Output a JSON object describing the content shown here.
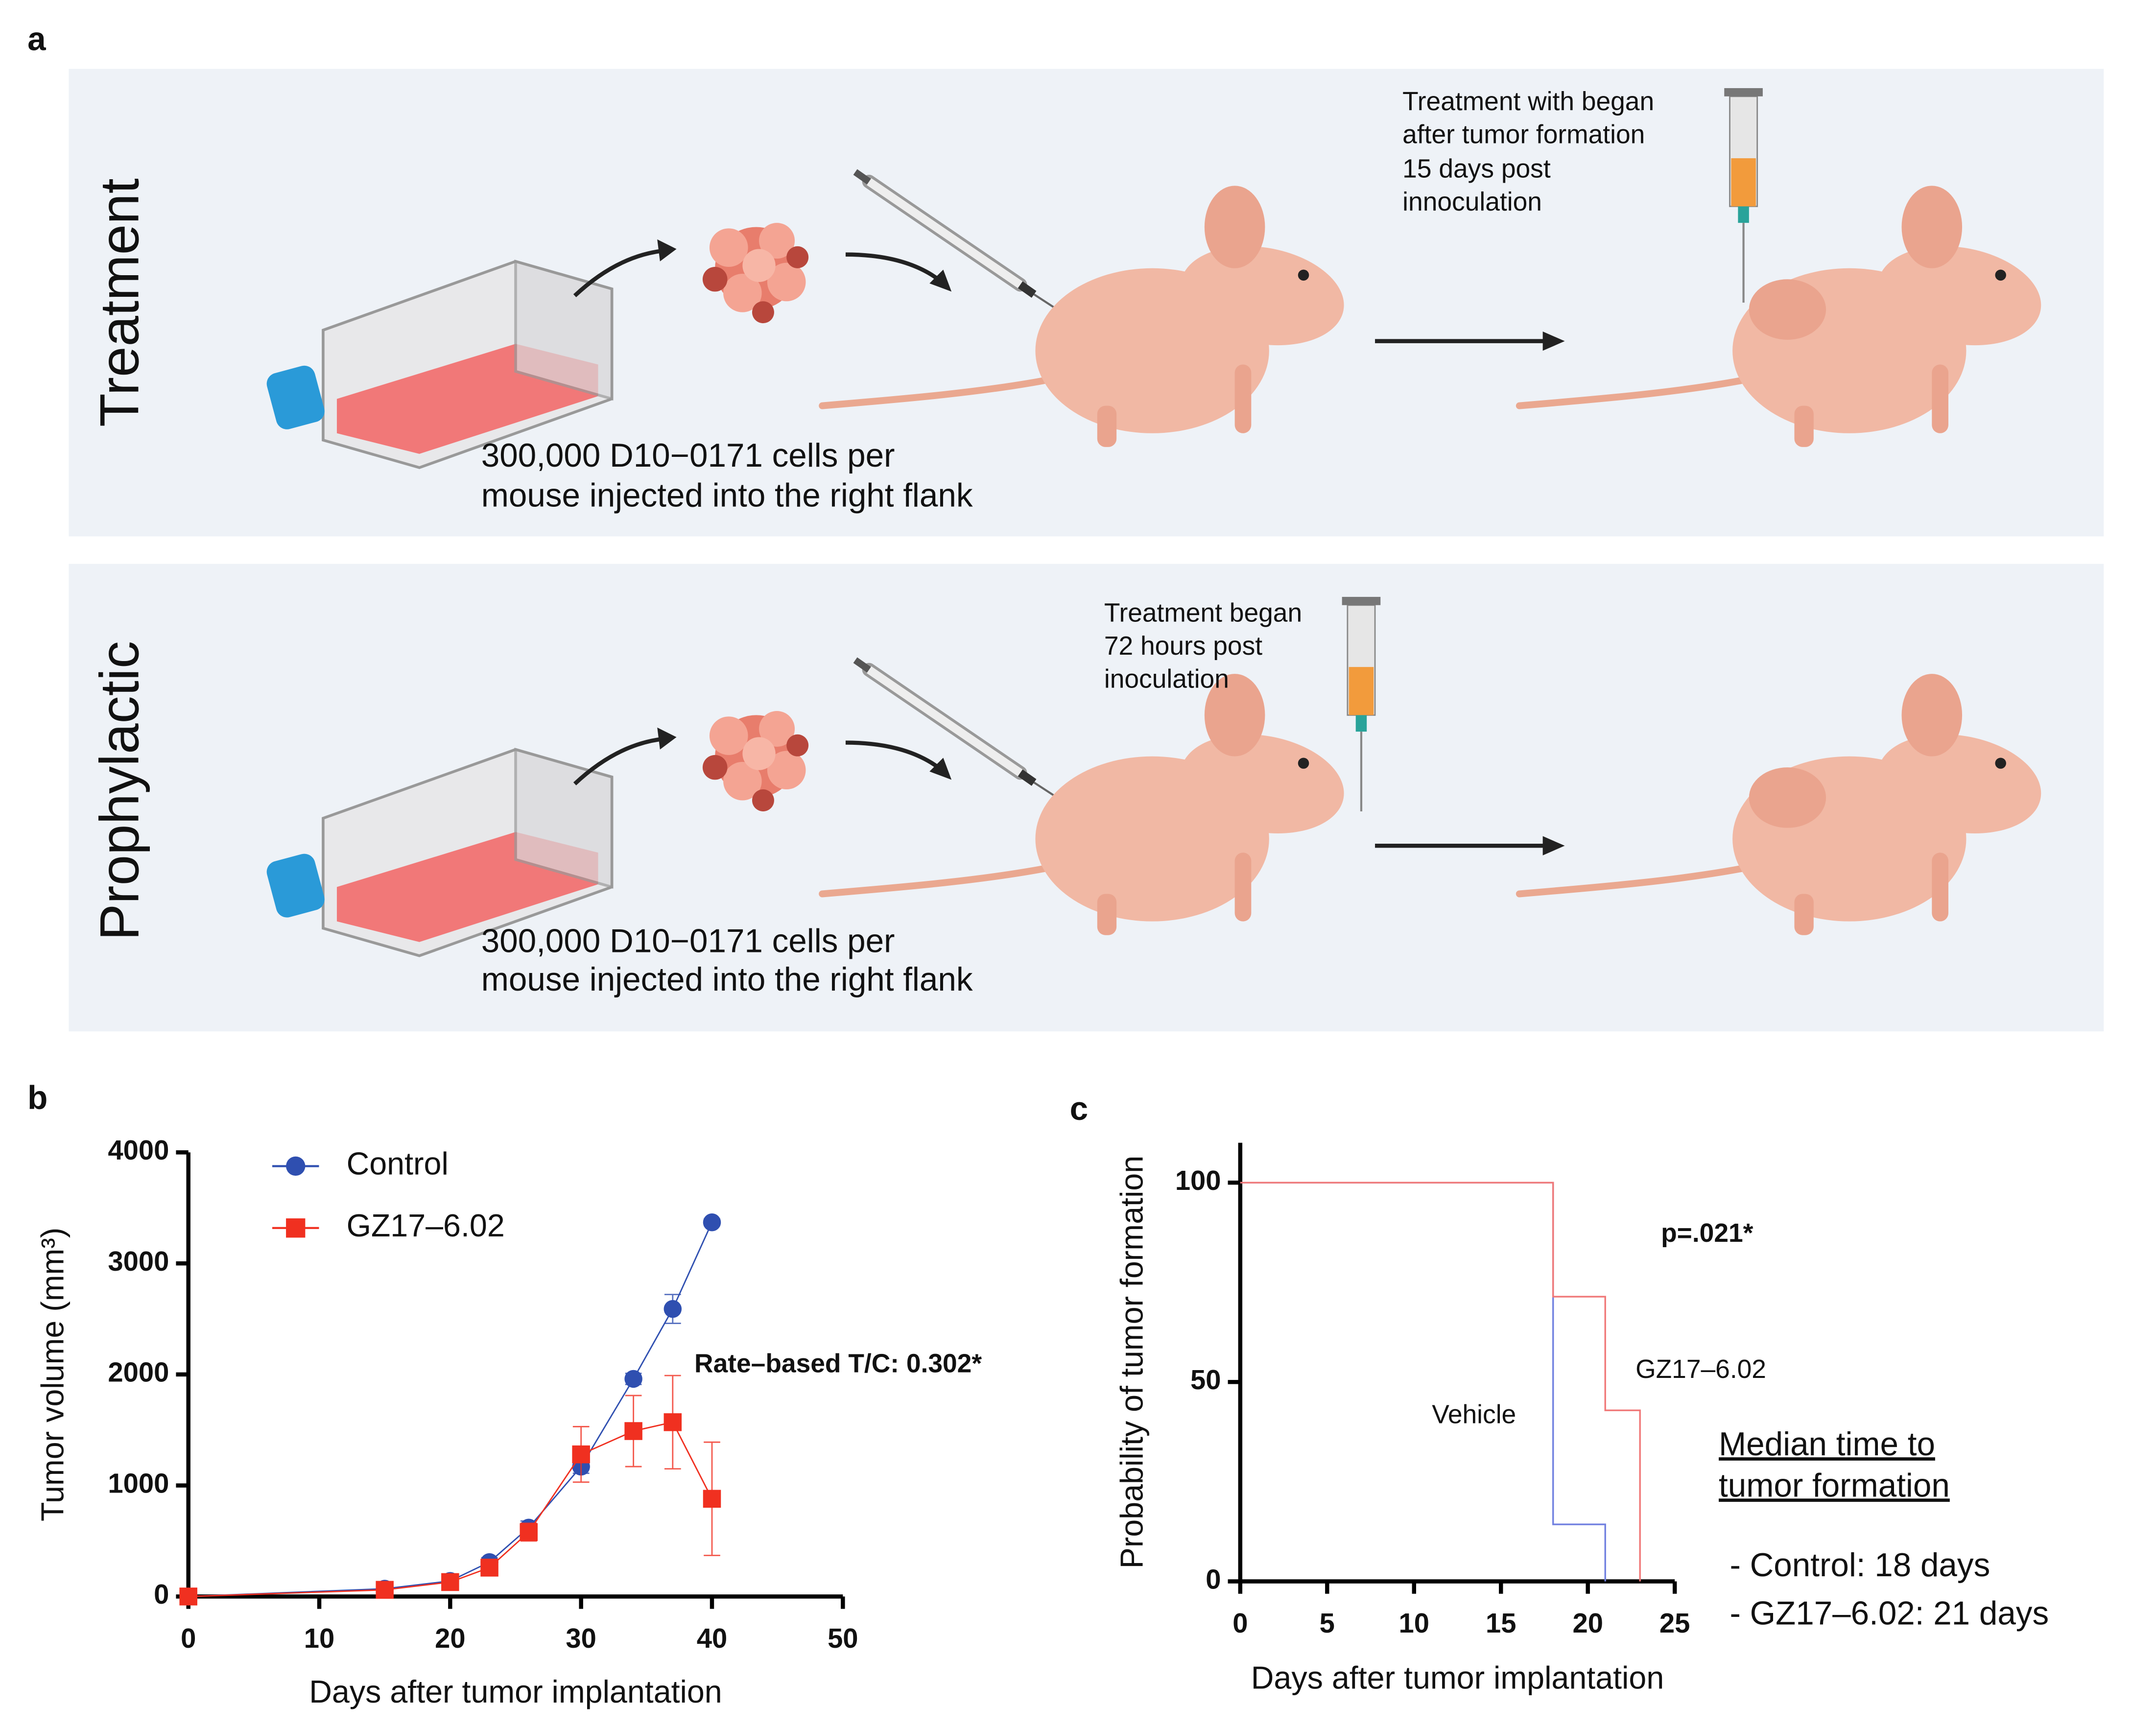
{
  "panel_labels": [
    "a",
    "b",
    "c"
  ],
  "diagram": {
    "rows": [
      {
        "label": "Treatment",
        "caption": [
          "300,000 D10−0171 cells per",
          "mouse injected into the right flank"
        ],
        "note": [
          "Treatment with began",
          "after tumor formation",
          "15 days post",
          "innoculation"
        ]
      },
      {
        "label": "Prophylactic",
        "caption": [
          "300,000 D10−0171 cells per",
          "mouse injected into the right flank"
        ],
        "note": [
          "Treatment began",
          "72 hours post",
          "inoculation"
        ]
      }
    ]
  },
  "chart_data": [
    {
      "type": "line",
      "xlabel": "Days after tumor implantation",
      "ylabel": "Tumor volume (mm³)",
      "annotation": "Rate–based T/C: 0.302*",
      "xlim": [
        0,
        50
      ],
      "xticks": [
        0,
        10,
        20,
        30,
        40,
        50
      ],
      "ylim": [
        0,
        4000
      ],
      "yticks": [
        0,
        1000,
        2000,
        3000,
        4000
      ],
      "legend": "upper left",
      "series": [
        {
          "name": "Control",
          "color": "#2f4fb0",
          "marker": "circle",
          "x": [
            0,
            15,
            20,
            23,
            26,
            30,
            34,
            37,
            40
          ],
          "values": [
            0,
            70,
            140,
            310,
            620,
            1170,
            1960,
            2590,
            3370
          ],
          "errors": [
            0,
            20,
            30,
            40,
            60,
            60,
            50,
            130,
            30
          ]
        },
        {
          "name": "GZ17–6.02",
          "color": "#f03020",
          "marker": "square",
          "x": [
            0,
            15,
            20,
            23,
            26,
            30,
            34,
            37,
            40
          ],
          "values": [
            0,
            60,
            130,
            260,
            580,
            1280,
            1490,
            1570,
            880
          ],
          "errors": [
            0,
            20,
            30,
            40,
            80,
            250,
            320,
            420,
            510
          ]
        }
      ]
    },
    {
      "type": "step",
      "xlabel": "Days after tumor implantation",
      "ylabel": "Probability of tumor formation",
      "annotation": "p=.021*",
      "xlim": [
        0,
        25
      ],
      "xticks": [
        0,
        5,
        10,
        15,
        20,
        25
      ],
      "ylim": [
        0,
        110
      ],
      "yticks": [
        0,
        50,
        100
      ],
      "series": [
        {
          "name": "Vehicle",
          "color": "#7080e0",
          "x": [
            0,
            18,
            18,
            21,
            21
          ],
          "values": [
            100,
            100,
            14.3,
            14.3,
            0
          ]
        },
        {
          "name": "GZ17–6.02",
          "color": "#f07878",
          "x": [
            0,
            18,
            18,
            21,
            21,
            23,
            23
          ],
          "values": [
            100,
            100,
            71.4,
            71.4,
            42.9,
            42.9,
            0
          ]
        }
      ],
      "side_note": {
        "heading": [
          "Median time to",
          "tumor formation"
        ],
        "items": [
          "- Control: 18 days",
          "- GZ17–6.02: 21 days"
        ]
      }
    }
  ]
}
